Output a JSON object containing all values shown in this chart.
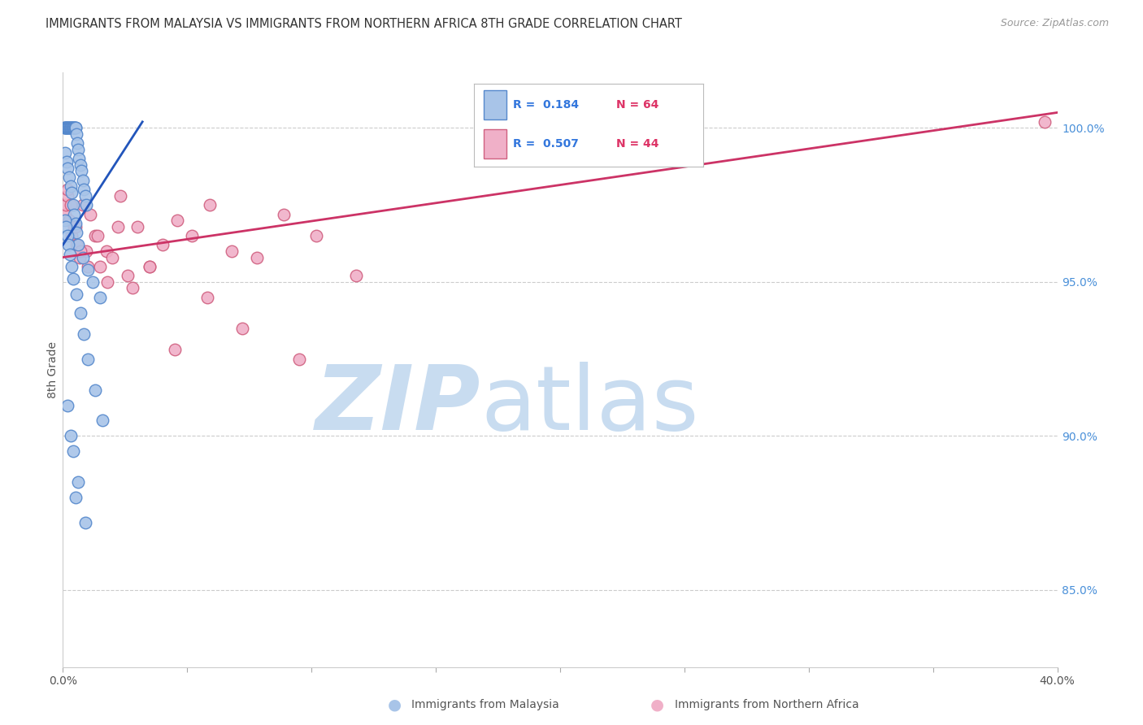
{
  "title": "IMMIGRANTS FROM MALAYSIA VS IMMIGRANTS FROM NORTHERN AFRICA 8TH GRADE CORRELATION CHART",
  "source": "Source: ZipAtlas.com",
  "ylabel": "8th Grade",
  "yticks": [
    100.0,
    95.0,
    90.0,
    85.0
  ],
  "ytick_labels": [
    "100.0%",
    "95.0%",
    "90.0%",
    "85.0%"
  ],
  "xmin": 0.0,
  "xmax": 40.0,
  "ymin": 82.5,
  "ymax": 101.8,
  "malaysia_color": "#a8c4e8",
  "malaysia_edge": "#5588cc",
  "n_africa_color": "#f0b0c8",
  "n_africa_edge": "#d06080",
  "trendline1_color": "#2255bb",
  "trendline2_color": "#cc3366",
  "watermark_zip_color": "#c8dcf0",
  "watermark_atlas_color": "#c8dcf0",
  "grid_color": "#cccccc",
  "background_color": "#ffffff",
  "mal_x": [
    0.05,
    0.08,
    0.1,
    0.12,
    0.15,
    0.18,
    0.2,
    0.22,
    0.25,
    0.28,
    0.3,
    0.32,
    0.35,
    0.38,
    0.4,
    0.42,
    0.45,
    0.48,
    0.5,
    0.52,
    0.55,
    0.58,
    0.6,
    0.65,
    0.7,
    0.75,
    0.8,
    0.85,
    0.9,
    0.95,
    0.1,
    0.15,
    0.2,
    0.25,
    0.3,
    0.35,
    0.4,
    0.45,
    0.5,
    0.55,
    0.6,
    0.8,
    1.0,
    1.2,
    1.5,
    0.08,
    0.12,
    0.18,
    0.22,
    0.28,
    0.35,
    0.42,
    0.55,
    0.7,
    0.85,
    1.0,
    1.3,
    1.6,
    0.4,
    0.6,
    0.2,
    0.3,
    0.5,
    0.9
  ],
  "mal_y": [
    100.0,
    100.0,
    100.0,
    100.0,
    100.0,
    100.0,
    100.0,
    100.0,
    100.0,
    100.0,
    100.0,
    100.0,
    100.0,
    100.0,
    100.0,
    100.0,
    100.0,
    100.0,
    100.0,
    100.0,
    99.8,
    99.5,
    99.3,
    99.0,
    98.8,
    98.6,
    98.3,
    98.0,
    97.8,
    97.5,
    99.2,
    98.9,
    98.7,
    98.4,
    98.1,
    97.9,
    97.5,
    97.2,
    96.9,
    96.6,
    96.2,
    95.8,
    95.4,
    95.0,
    94.5,
    97.0,
    96.8,
    96.5,
    96.2,
    95.9,
    95.5,
    95.1,
    94.6,
    94.0,
    93.3,
    92.5,
    91.5,
    90.5,
    89.5,
    88.5,
    91.0,
    90.0,
    88.0,
    87.2
  ],
  "af_x": [
    0.08,
    0.12,
    0.18,
    0.25,
    0.35,
    0.45,
    0.55,
    0.68,
    0.8,
    0.95,
    1.1,
    1.3,
    1.5,
    1.75,
    2.0,
    2.3,
    2.6,
    3.0,
    3.5,
    4.0,
    4.6,
    5.2,
    5.9,
    6.8,
    7.8,
    8.9,
    10.2,
    11.8,
    0.2,
    0.3,
    0.5,
    0.7,
    1.0,
    1.4,
    1.8,
    2.2,
    2.8,
    3.5,
    4.5,
    5.8,
    7.2,
    9.5,
    25.0,
    39.5
  ],
  "af_y": [
    97.2,
    97.5,
    97.8,
    97.0,
    96.5,
    96.8,
    96.2,
    95.8,
    97.5,
    96.0,
    97.2,
    96.5,
    95.5,
    96.0,
    95.8,
    97.8,
    95.2,
    96.8,
    95.5,
    96.2,
    97.0,
    96.5,
    97.5,
    96.0,
    95.8,
    97.2,
    96.5,
    95.2,
    98.0,
    97.5,
    96.8,
    96.0,
    95.5,
    96.5,
    95.0,
    96.8,
    94.8,
    95.5,
    92.8,
    94.5,
    93.5,
    92.5,
    100.0,
    100.2
  ],
  "mal_trend_x0": 0.0,
  "mal_trend_y0": 96.2,
  "mal_trend_x1": 3.2,
  "mal_trend_y1": 100.2,
  "af_trend_x0": 0.0,
  "af_trend_y0": 95.8,
  "af_trend_x1": 40.0,
  "af_trend_y1": 100.5,
  "legend_r1_color": "#3377dd",
  "legend_n1_color": "#dd3366",
  "legend_r2_color": "#3377dd",
  "legend_n2_color": "#dd3366"
}
